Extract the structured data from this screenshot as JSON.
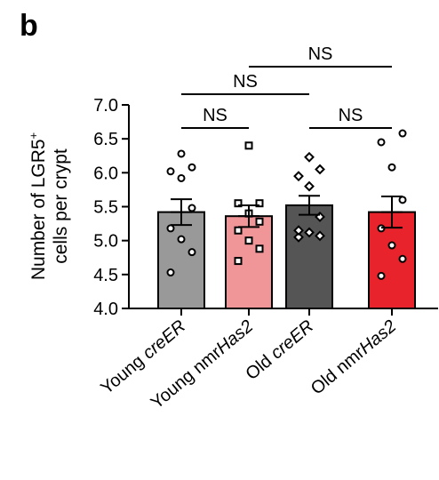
{
  "panel_label": "b",
  "chart_data": {
    "type": "bar",
    "ylabel_lines": [
      "Number of LGR5",
      "cells per crypt"
    ],
    "ylabel_superscript": "+",
    "ylim": [
      4.0,
      7.0
    ],
    "yticks": [
      "4.0",
      "4.5",
      "5.0",
      "5.5",
      "6.0",
      "6.5",
      "7.0"
    ],
    "categories": [
      {
        "prefix": "Young ",
        "italic": "creER",
        "suffix": ""
      },
      {
        "prefix": "Young nmr",
        "italic": "Has2",
        "suffix": ""
      },
      {
        "prefix": "Old ",
        "italic": "creER",
        "suffix": ""
      },
      {
        "prefix": "Old nmr",
        "italic": "Has2",
        "suffix": ""
      }
    ],
    "values": [
      5.42,
      5.36,
      5.52,
      5.42
    ],
    "sem": [
      0.19,
      0.16,
      0.14,
      0.23
    ],
    "colors": [
      "#999999",
      "#f09598",
      "#555555",
      "#e8232b"
    ],
    "marker_shapes": [
      "circle",
      "square",
      "diamond",
      "circle"
    ],
    "points": [
      [
        4.53,
        4.83,
        5.02,
        5.18,
        5.48,
        5.92,
        6.02,
        6.08,
        6.28
      ],
      [
        4.7,
        4.88,
        5.0,
        5.15,
        5.28,
        5.4,
        5.55,
        5.55,
        6.4
      ],
      [
        5.05,
        5.07,
        5.12,
        5.15,
        5.35,
        5.8,
        5.95,
        6.05,
        6.23
      ],
      [
        4.48,
        4.73,
        4.93,
        5.18,
        5.6,
        6.08,
        6.45,
        6.58
      ]
    ],
    "significance": [
      {
        "from": 0,
        "to": 1,
        "label": "NS"
      },
      {
        "from": 2,
        "to": 3,
        "label": "NS"
      },
      {
        "from": 0,
        "to": 2,
        "label": "NS"
      },
      {
        "from": 1,
        "to": 3,
        "label": "NS"
      }
    ]
  }
}
